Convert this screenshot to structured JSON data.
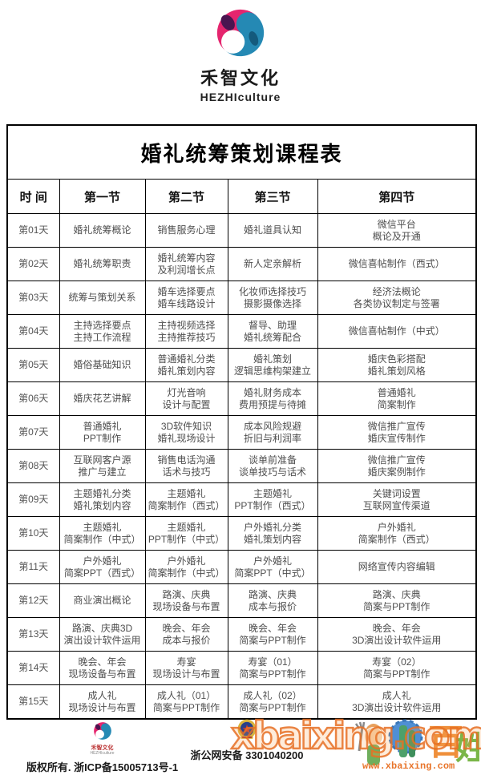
{
  "brand": {
    "name_cn": "禾智文化",
    "name_en": "HEZHIculture"
  },
  "table": {
    "title": "婚礼统筹策划课程表",
    "headers": [
      "时  间",
      "第一节",
      "第二节",
      "第三节",
      "第四节"
    ],
    "rows": [
      {
        "day": "第01天",
        "cells": [
          [
            "婚礼统筹概论"
          ],
          [
            "销售服务心理"
          ],
          [
            "婚礼道具认知"
          ],
          [
            "微信平台",
            "概论及开通"
          ]
        ]
      },
      {
        "day": "第02天",
        "cells": [
          [
            "婚礼统筹职责"
          ],
          [
            "婚礼统筹内容",
            "及利润增长点"
          ],
          [
            "新人定亲解析"
          ],
          [
            "微信喜帖制作（西式）"
          ]
        ]
      },
      {
        "day": "第03天",
        "cells": [
          [
            "统筹与策划关系"
          ],
          [
            "婚车选择要点",
            "婚车线路设计"
          ],
          [
            "化妆师选择技巧",
            "摄影摄像选择"
          ],
          [
            "经济法概论",
            "各类协议制定与签署"
          ]
        ]
      },
      {
        "day": "第04天",
        "cells": [
          [
            "主持选择要点",
            "主持工作流程"
          ],
          [
            "主持视频选择",
            "主持推荐技巧"
          ],
          [
            "督导、助理",
            "婚礼统筹配合"
          ],
          [
            "微信喜帖制作（中式）"
          ]
        ]
      },
      {
        "day": "第05天",
        "cells": [
          [
            "婚俗基础知识"
          ],
          [
            "普通婚礼分类",
            "婚礼策划内容"
          ],
          [
            "婚礼策划",
            "逻辑思维构架建立"
          ],
          [
            "婚庆色彩搭配",
            "婚礼策划风格"
          ]
        ]
      },
      {
        "day": "第06天",
        "cells": [
          [
            "婚庆花艺讲解"
          ],
          [
            "灯光音响",
            "设计与配置"
          ],
          [
            "婚礼财务成本",
            "费用预提与待摊"
          ],
          [
            "普通婚礼",
            "简案制作"
          ]
        ]
      },
      {
        "day": "第07天",
        "cells": [
          [
            "普通婚礼",
            "PPT制作"
          ],
          [
            "3D软件知识",
            "婚礼现场设计"
          ],
          [
            "成本风险规避",
            "折旧与利润率"
          ],
          [
            "微信推广宣传",
            "婚庆宣传制作"
          ]
        ]
      },
      {
        "day": "第08天",
        "cells": [
          [
            "互联网客户源",
            "推广与建立"
          ],
          [
            "销售电话沟通",
            "话术与技巧"
          ],
          [
            "谈单前准备",
            "谈单技巧与话术"
          ],
          [
            "微信推广宣传",
            "婚庆案例制作"
          ]
        ]
      },
      {
        "day": "第09天",
        "cells": [
          [
            "主题婚礼分类",
            "婚礼策划内容"
          ],
          [
            "主题婚礼",
            "简案制作（西式）"
          ],
          [
            "主题婚礼",
            "PPT制作（西式）"
          ],
          [
            "关键词设置",
            "互联网宣传渠道"
          ]
        ]
      },
      {
        "day": "第10天",
        "cells": [
          [
            "主题婚礼",
            "简案制作（中式）"
          ],
          [
            "主题婚礼",
            "PPT制作（中式）"
          ],
          [
            "户外婚礼分类",
            "婚礼策划内容"
          ],
          [
            "户外婚礼",
            "简案制作（西式）"
          ]
        ]
      },
      {
        "day": "第11天",
        "cells": [
          [
            "户外婚礼",
            "简案PPT（西式）"
          ],
          [
            "户外婚礼",
            "简案制作（中式）"
          ],
          [
            "户外婚礼",
            "简案PPT（中式）"
          ],
          [
            "网络宣传内容编辑"
          ]
        ]
      },
      {
        "day": "第12天",
        "cells": [
          [
            "商业演出概论"
          ],
          [
            "路演、庆典",
            "现场设备与布置"
          ],
          [
            "路演、庆典",
            "成本与报价"
          ],
          [
            "路演、庆典",
            "简案与PPT制作"
          ]
        ]
      },
      {
        "day": "第13天",
        "cells": [
          [
            "路演、庆典3D",
            "演出设计软件运用"
          ],
          [
            "晚会、年会",
            "成本与报价"
          ],
          [
            "晚会、年会",
            "简案与PPT制作"
          ],
          [
            "晚会、年会",
            "3D演出设计软件运用"
          ]
        ]
      },
      {
        "day": "第14天",
        "cells": [
          [
            "晚会、年会",
            "现场设备与布置"
          ],
          [
            "寿宴",
            "现场设计与布置"
          ],
          [
            "寿宴（01）",
            "简案与PPT制作"
          ],
          [
            "寿宴（02）",
            "简案与PPT制作"
          ]
        ]
      },
      {
        "day": "第15天",
        "cells": [
          [
            "成人礼",
            "现场设计与布置"
          ],
          [
            "成人礼（01）",
            "简案与PPT制作"
          ],
          [
            "成人礼（02）",
            "简案与PPT制作"
          ],
          [
            "成人礼",
            "3D演出设计软件运用"
          ]
        ]
      }
    ]
  },
  "footer": {
    "brand_cn": "禾智文化",
    "brand_en": "HEZHIculture",
    "copyright": "版权所有. 浙ICP备15005713号-1",
    "police_text": "浙公网安备 3301040200",
    "watermark_big": "xbaixing.com",
    "watermark_url": "www.xbaixing.com",
    "baixing_char_1": "百",
    "baixing_char_2": "姓"
  },
  "colors": {
    "logo_pink": "#e5256e",
    "logo_purple": "#4b1550",
    "logo_blue": "#2589b4",
    "logo_navy": "#145a7d",
    "border": "#000000",
    "cell_text": "#4e4e4e",
    "watermark_orange": "#e8742a",
    "baixing_orange": "#ef8f3a",
    "baixing_green": "#7ab648",
    "baixing_blue": "#4f8fd4"
  }
}
